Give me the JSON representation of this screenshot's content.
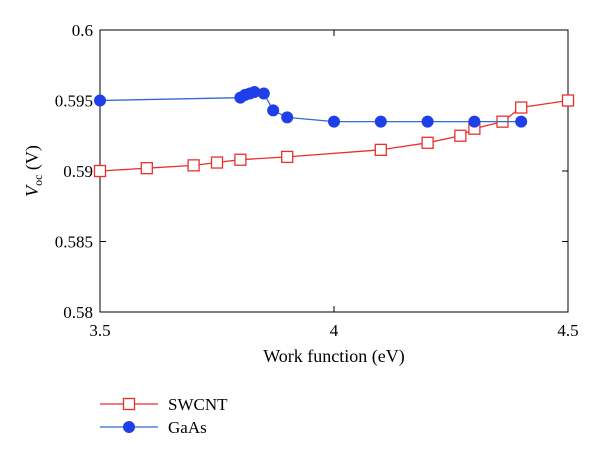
{
  "chart_data": {
    "type": "line",
    "title": "",
    "xlabel": "Work function (eV)",
    "ylabel_main": "V",
    "ylabel_sub": "oc",
    "ylabel_unit": " (V)",
    "xlim": [
      3.5,
      4.5
    ],
    "ylim": [
      0.58,
      0.6
    ],
    "xticks": [
      3.5,
      4,
      4.5
    ],
    "xtick_labels": [
      "3.5",
      "4",
      "4.5"
    ],
    "yticks": [
      0.58,
      0.585,
      0.59,
      0.595,
      0.6
    ],
    "ytick_labels": [
      "0.58",
      "0.585",
      "0.59",
      "0.595",
      "0.6"
    ],
    "grid": false,
    "legend_position": "below-left",
    "series": [
      {
        "name": "SWCNT",
        "color": "#e8312c",
        "marker": "open-square",
        "x": [
          3.5,
          3.6,
          3.7,
          3.75,
          3.8,
          3.9,
          4.1,
          4.2,
          4.27,
          4.3,
          4.36,
          4.4,
          4.5
        ],
        "y": [
          0.59,
          0.5902,
          0.5904,
          0.5906,
          0.5908,
          0.591,
          0.5915,
          0.592,
          0.5925,
          0.593,
          0.5935,
          0.5945,
          0.595
        ]
      },
      {
        "name": "GaAs",
        "color": "#2f6bd0",
        "marker": "filled-circle",
        "x": [
          3.5,
          3.8,
          3.81,
          3.82,
          3.83,
          3.85,
          3.87,
          3.9,
          4.0,
          4.1,
          4.2,
          4.3,
          4.4
        ],
        "y": [
          0.595,
          0.5952,
          0.5954,
          0.5955,
          0.5956,
          0.5955,
          0.5943,
          0.5938,
          0.5935,
          0.5935,
          0.5935,
          0.5935,
          0.5935
        ]
      }
    ]
  }
}
